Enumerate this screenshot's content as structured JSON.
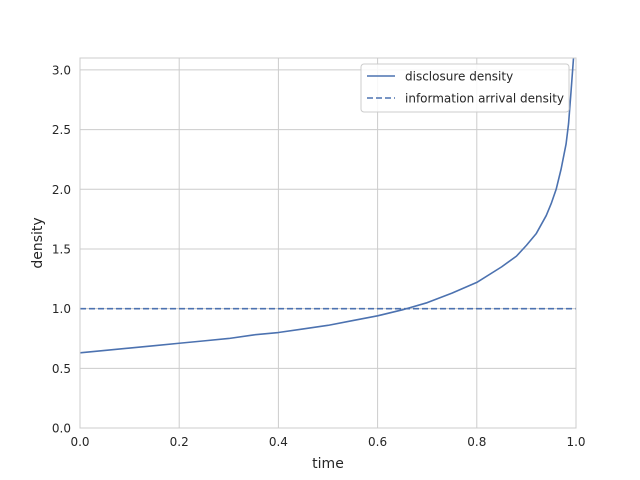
{
  "chart_data": {
    "type": "line",
    "title": "",
    "xlabel": "time",
    "ylabel": "density",
    "xlim": [
      0,
      1
    ],
    "ylim": [
      0,
      3.1
    ],
    "grid": true,
    "x_ticks": [
      0.0,
      0.2,
      0.4,
      0.6,
      0.8,
      1.0
    ],
    "x_tick_labels": [
      "0.0",
      "0.2",
      "0.4",
      "0.6",
      "0.8",
      "1.0"
    ],
    "y_ticks": [
      0.0,
      0.5,
      1.0,
      1.5,
      2.0,
      2.5,
      3.0
    ],
    "y_tick_labels": [
      "0.0",
      "0.5",
      "1.0",
      "1.5",
      "2.0",
      "2.5",
      "3.0"
    ],
    "legend_position": "top-right",
    "series": [
      {
        "name": "disclosure density",
        "style": "solid",
        "color": "#4c72b0",
        "x": [
          0.0,
          0.05,
          0.1,
          0.15,
          0.2,
          0.25,
          0.3,
          0.35,
          0.4,
          0.45,
          0.5,
          0.55,
          0.6,
          0.65,
          0.7,
          0.75,
          0.8,
          0.85,
          0.88,
          0.9,
          0.92,
          0.94,
          0.95,
          0.96,
          0.97,
          0.98,
          0.985,
          0.99,
          0.995
        ],
        "y": [
          0.63,
          0.65,
          0.67,
          0.69,
          0.71,
          0.73,
          0.75,
          0.78,
          0.8,
          0.83,
          0.86,
          0.9,
          0.94,
          0.99,
          1.05,
          1.13,
          1.22,
          1.35,
          1.44,
          1.53,
          1.63,
          1.78,
          1.88,
          2.0,
          2.17,
          2.38,
          2.55,
          2.82,
          3.1
        ]
      },
      {
        "name": "information arrival density",
        "style": "dashed",
        "color": "#4c72b0",
        "x": [
          0.0,
          1.0
        ],
        "y": [
          1.0,
          1.0
        ]
      }
    ]
  }
}
